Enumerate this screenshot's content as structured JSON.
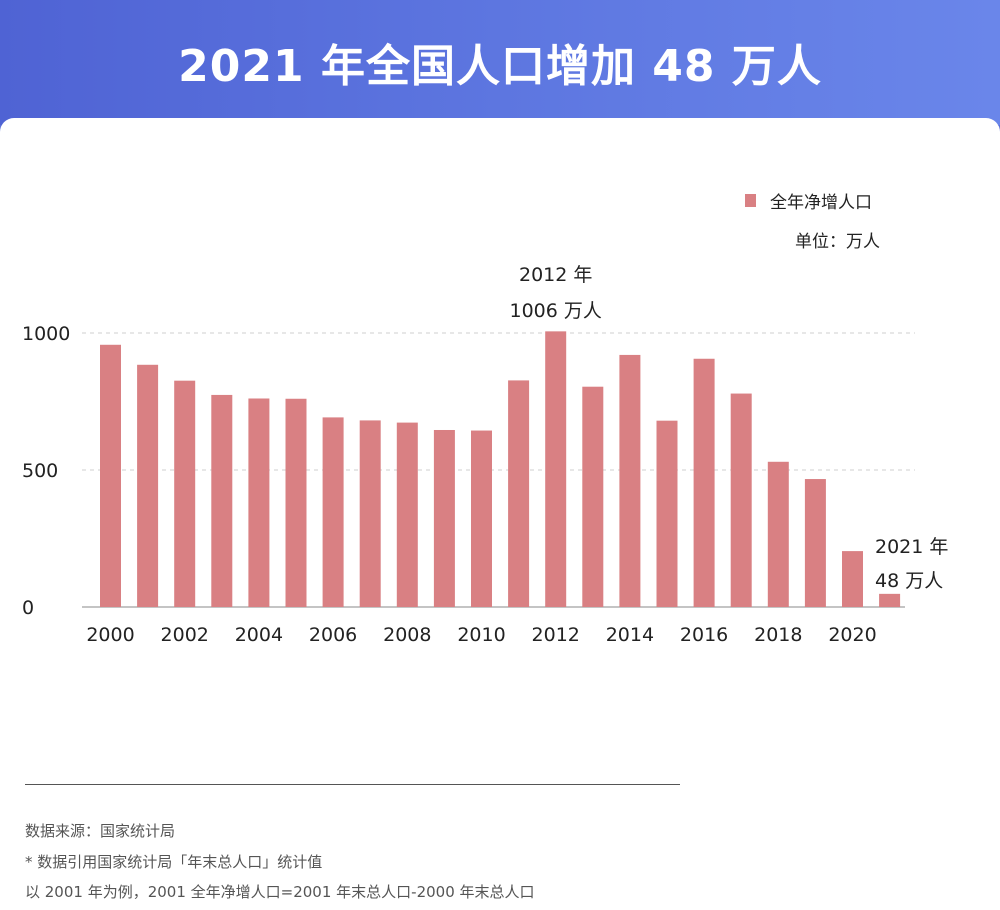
{
  "header": {
    "title": "2021 年全国人口增加 48 万人"
  },
  "legend": {
    "label": "全年净增人口",
    "unit": "单位：万人",
    "color": "#d98083"
  },
  "chart_data": {
    "type": "bar",
    "categories": [
      "2000",
      "2001",
      "2002",
      "2003",
      "2004",
      "2005",
      "2006",
      "2007",
      "2008",
      "2009",
      "2010",
      "2011",
      "2012",
      "2013",
      "2014",
      "2015",
      "2016",
      "2017",
      "2018",
      "2019",
      "2020",
      "2021"
    ],
    "values": [
      957,
      884,
      826,
      774,
      761,
      760,
      692,
      681,
      673,
      646,
      644,
      827,
      1006,
      804,
      920,
      680,
      906,
      779,
      530,
      467,
      204,
      48
    ],
    "x_tick_labels": [
      "2000",
      "2002",
      "2004",
      "2006",
      "2008",
      "2010",
      "2012",
      "2014",
      "2016",
      "2018",
      "2020"
    ],
    "y_ticks": [
      0,
      500,
      1000
    ],
    "ylim": [
      0,
      1000
    ],
    "series_name": "全年净增人口",
    "annotations": [
      {
        "category": "2012",
        "lines": [
          "2012 年",
          "1006 万人"
        ]
      },
      {
        "category": "2021",
        "lines": [
          "2021 年",
          "48 万人"
        ]
      }
    ]
  },
  "footer": {
    "source": "数据来源：国家统计局",
    "note1": "* 数据引用国家统计局「年末总人口」统计值",
    "note2": "以 2001 年为例，2001 全年净增人口=2001 年末总人口-2000 年末总人口"
  }
}
